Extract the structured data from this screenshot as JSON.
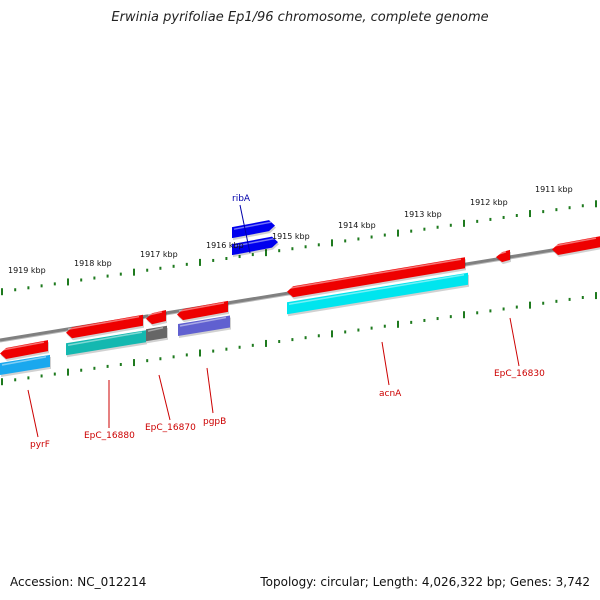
{
  "title": "Erwinia pyrifoliae Ep1/96 chromosome, complete genome",
  "footer": {
    "accession": "Accession: NC_012214",
    "summary": "Topology: circular; Length: 4,026,322 bp; Genes: 3,742"
  },
  "colors": {
    "backbone": "#808080",
    "tick": "#1e7a1e",
    "label_red": "#cc0000",
    "label_blue": "#0000aa",
    "gene_red": "#ee0000",
    "gene_blue": "#0000ee",
    "gene_cyan": "#00e5ee",
    "gene_teal": "#14b8b0",
    "gene_gray": "#666666",
    "gene_purple": "#6060d0",
    "gene_lightblue": "#1aa8ee"
  },
  "scale_labels": [
    "1919 kbp",
    "1918 kbp",
    "1917 kbp",
    "1916 kbp",
    "1915 kbp",
    "1914 kbp",
    "1913 kbp",
    "1912 kbp",
    "1911 kbp"
  ],
  "gene_labels": [
    {
      "name": "ribA",
      "color": "blue"
    },
    {
      "name": "pyrF",
      "color": "red"
    },
    {
      "name": "EpC_16880",
      "color": "red"
    },
    {
      "name": "EpC_16870",
      "color": "red"
    },
    {
      "name": "pgpB",
      "color": "red"
    },
    {
      "name": "acnA",
      "color": "red"
    },
    {
      "name": "EpC_16830",
      "color": "red"
    }
  ]
}
